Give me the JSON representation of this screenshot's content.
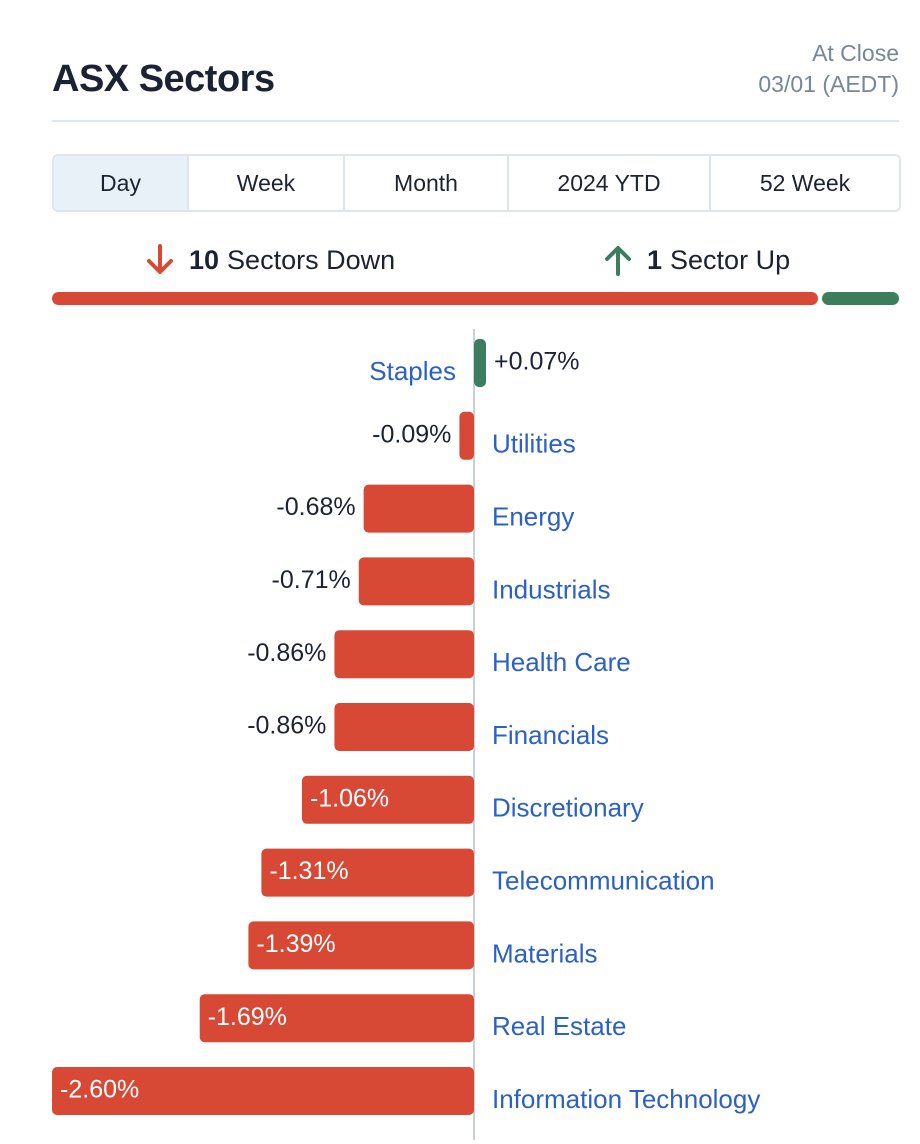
{
  "header": {
    "title": "ASX Sectors",
    "status_line1": "At Close",
    "status_line2": "03/01 (AEDT)"
  },
  "tabs": [
    {
      "label": "Day",
      "active": true
    },
    {
      "label": "Week",
      "active": false
    },
    {
      "label": "Month",
      "active": false
    },
    {
      "label": "2024 YTD",
      "active": false
    },
    {
      "label": "52 Week",
      "active": false
    }
  ],
  "summary": {
    "down_count": "10",
    "down_label": "Sectors Down",
    "up_count": "1",
    "up_label": "Sector Up",
    "down_icon": "arrow-down-icon",
    "up_icon": "arrow-up-icon"
  },
  "colors": {
    "negative": "#d84935",
    "positive": "#3b7d5c",
    "link": "#2b61c6",
    "text": "#1b2333"
  },
  "chart_data": {
    "type": "bar",
    "orientation": "horizontal-diverging",
    "categories": [
      "Staples",
      "Utilities",
      "Energy",
      "Industrials",
      "Health Care",
      "Financials",
      "Discretionary",
      "Telecommunication",
      "Materials",
      "Real Estate",
      "Information Technology"
    ],
    "values": [
      0.07,
      -0.09,
      -0.68,
      -0.71,
      -0.86,
      -0.86,
      -1.06,
      -1.31,
      -1.39,
      -1.69,
      -2.6
    ],
    "value_labels": [
      "+0.07%",
      "-0.09%",
      "-0.68%",
      "-0.71%",
      "-0.86%",
      "-0.86%",
      "-1.06%",
      "-1.31%",
      "-1.39%",
      "-1.69%",
      "-2.60%"
    ],
    "unit": "%"
  }
}
